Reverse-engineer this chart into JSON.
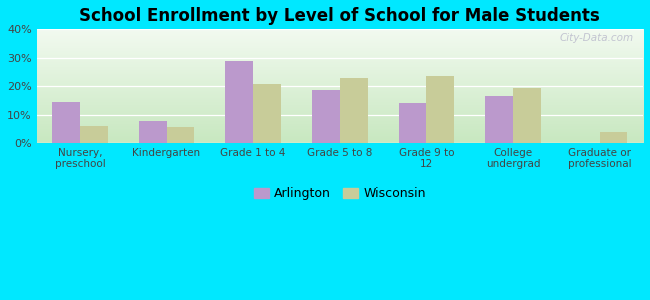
{
  "title": "School Enrollment by Level of School for Male Students",
  "categories": [
    "Nursery,\npreschool",
    "Kindergarten",
    "Grade 1 to 4",
    "Grade 5 to 8",
    "Grade 9 to\n12",
    "College\nundergrad",
    "Graduate or\nprofessional"
  ],
  "arlington": [
    14.5,
    7.8,
    29.0,
    18.5,
    14.0,
    16.5,
    0.0
  ],
  "wisconsin": [
    6.0,
    5.5,
    20.8,
    23.0,
    23.5,
    19.2,
    3.8
  ],
  "arlington_color": "#bb99cc",
  "wisconsin_color": "#c8cc99",
  "background_outer": "#00e8ff",
  "ylim": [
    0,
    40
  ],
  "yticks": [
    0,
    10,
    20,
    30,
    40
  ],
  "bar_width": 0.32,
  "legend_labels": [
    "Arlington",
    "Wisconsin"
  ],
  "watermark": "City-Data.com"
}
